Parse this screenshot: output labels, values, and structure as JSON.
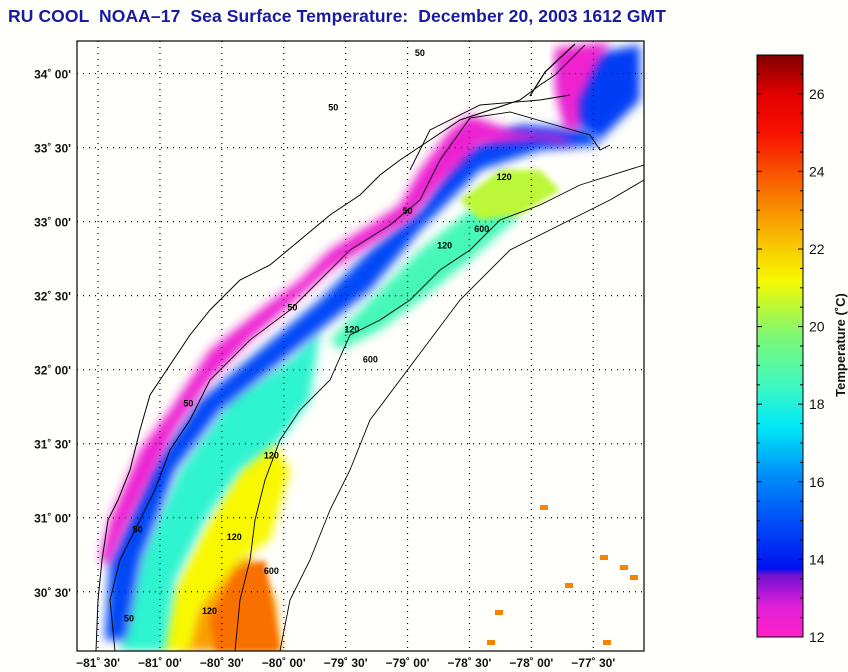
{
  "title": "RU COOL  NOAA–17  Sea Surface Temperature:  December 20, 2003 1612 GMT",
  "map": {
    "lat_labels": [
      "34˚ 00'",
      "33˚ 30'",
      "33˚ 00'",
      "32˚ 30'",
      "32˚ 00'",
      "31˚ 30'",
      "31˚ 00'",
      "30˚ 30'"
    ],
    "lat_values": [
      34.0,
      33.5,
      33.0,
      32.5,
      32.0,
      31.5,
      31.0,
      30.5
    ],
    "lon_labels": [
      "−81˚ 30'",
      "−81˚ 00'",
      "−80˚ 30'",
      "−80˚ 00'",
      "−79˚ 30'",
      "−79˚ 00'",
      "−78˚ 30'",
      "−78˚ 00'",
      "−77˚ 30'"
    ],
    "lon_values": [
      -81.5,
      -81.0,
      -80.5,
      -80.0,
      -79.5,
      -79.0,
      -78.5,
      -78.0,
      -77.5
    ],
    "lat_range": [
      30.1,
      34.22
    ],
    "lon_range": [
      -81.67,
      -77.09
    ],
    "grid": "dotted",
    "isobath_labels": [
      "50",
      "120",
      "600"
    ],
    "contour_labels": [
      {
        "text": "50",
        "lon": -78.9,
        "lat": 34.12
      },
      {
        "text": "50",
        "lon": -79.6,
        "lat": 33.75
      },
      {
        "text": "50",
        "lon": -79.0,
        "lat": 33.05
      },
      {
        "text": "50",
        "lon": -79.93,
        "lat": 32.4
      },
      {
        "text": "50",
        "lon": -80.77,
        "lat": 31.75
      },
      {
        "text": "50",
        "lon": -81.18,
        "lat": 30.9
      },
      {
        "text": "50",
        "lon": -81.25,
        "lat": 30.3
      },
      {
        "text": "120",
        "lon": -78.22,
        "lat": 33.28
      },
      {
        "text": "120",
        "lon": -78.7,
        "lat": 32.82
      },
      {
        "text": "120",
        "lon": -79.45,
        "lat": 32.25
      },
      {
        "text": "120",
        "lon": -80.1,
        "lat": 31.4
      },
      {
        "text": "120",
        "lon": -80.4,
        "lat": 30.85
      },
      {
        "text": "120",
        "lon": -80.6,
        "lat": 30.35
      },
      {
        "text": "600",
        "lon": -78.4,
        "lat": 32.93
      },
      {
        "text": "600",
        "lon": -79.3,
        "lat": 32.05
      },
      {
        "text": "600",
        "lon": -80.1,
        "lat": 30.62
      }
    ]
  },
  "colorbar": {
    "label": "Temperature (˚C)",
    "min": 12,
    "max": 27,
    "ticks": [
      12,
      14,
      16,
      18,
      20,
      22,
      24,
      26
    ],
    "tick_labels": [
      "12",
      "14",
      "16",
      "18",
      "20",
      "22",
      "24",
      "26"
    ],
    "stops": [
      {
        "t": 12.0,
        "color": "#ff20c8"
      },
      {
        "t": 12.8,
        "color": "#e020d8"
      },
      {
        "t": 13.6,
        "color": "#7010d0"
      },
      {
        "t": 13.75,
        "color": "#0010f0"
      },
      {
        "t": 15.0,
        "color": "#0050f8"
      },
      {
        "t": 16.2,
        "color": "#0090f8"
      },
      {
        "t": 17.4,
        "color": "#00e8f8"
      },
      {
        "t": 18.5,
        "color": "#40f8c0"
      },
      {
        "t": 19.8,
        "color": "#80f870"
      },
      {
        "t": 21.2,
        "color": "#f8f800"
      },
      {
        "t": 22.5,
        "color": "#f8b000"
      },
      {
        "t": 24.0,
        "color": "#f85000"
      },
      {
        "t": 25.0,
        "color": "#f81000"
      },
      {
        "t": 26.0,
        "color": "#e00000"
      },
      {
        "t": 27.0,
        "color": "#800000"
      }
    ]
  }
}
